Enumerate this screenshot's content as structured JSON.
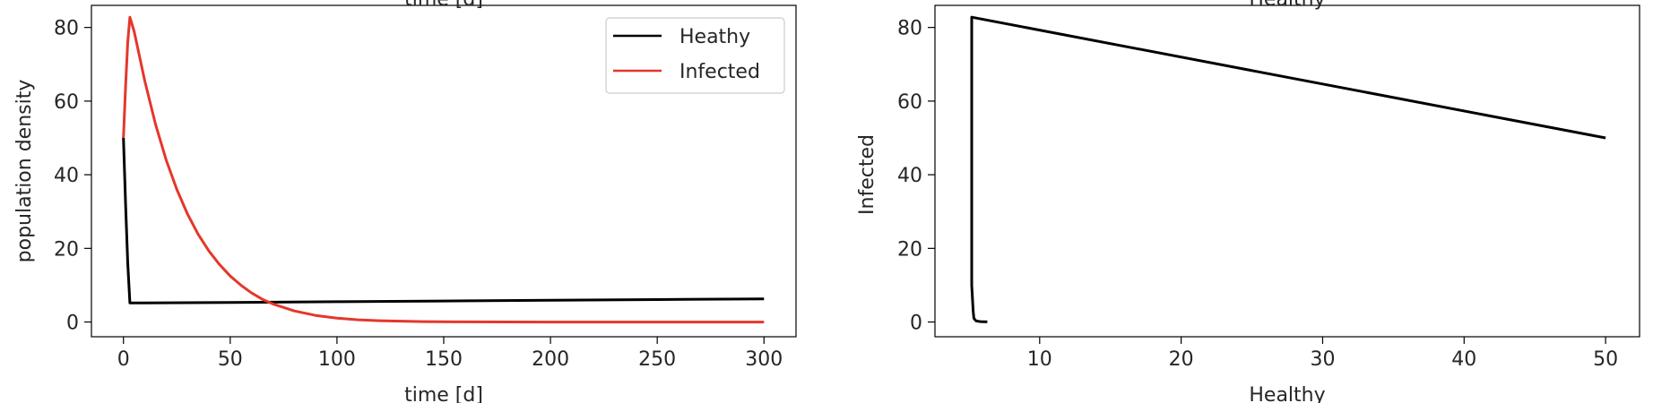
{
  "chart_data": [
    {
      "type": "line",
      "xlabel": "time [d]",
      "ylabel": "population density",
      "top_cut_label": "time [d]",
      "xlim": [
        -15,
        315
      ],
      "ylim": [
        -4,
        86
      ],
      "xticks": [
        0,
        50,
        100,
        150,
        200,
        250,
        300
      ],
      "yticks": [
        0,
        20,
        40,
        60,
        80
      ],
      "legend_position": "upper right",
      "grid": false,
      "series": [
        {
          "name": "Heathy",
          "color": "#000000",
          "points": [
            [
              0,
              50
            ],
            [
              1,
              32
            ],
            [
              2,
              16
            ],
            [
              3,
              5.2
            ],
            [
              10,
              5.2
            ],
            [
              50,
              5.3
            ],
            [
              100,
              5.5
            ],
            [
              150,
              5.7
            ],
            [
              200,
              5.9
            ],
            [
              250,
              6.1
            ],
            [
              300,
              6.3
            ]
          ]
        },
        {
          "name": "Infected",
          "color": "#e4372b",
          "points": [
            [
              0,
              50
            ],
            [
              1,
              64
            ],
            [
              2,
              76
            ],
            [
              3,
              82.8
            ],
            [
              5,
              79
            ],
            [
              10,
              65.5
            ],
            [
              15,
              53.7
            ],
            [
              20,
              44
            ],
            [
              25,
              36
            ],
            [
              30,
              29.3
            ],
            [
              35,
              23.8
            ],
            [
              40,
              19.3
            ],
            [
              45,
              15.6
            ],
            [
              50,
              12.5
            ],
            [
              55,
              10
            ],
            [
              60,
              7.9
            ],
            [
              65,
              6.2
            ],
            [
              70,
              4.9
            ],
            [
              80,
              3.0
            ],
            [
              90,
              1.8
            ],
            [
              100,
              1.05
            ],
            [
              110,
              0.6
            ],
            [
              120,
              0.35
            ],
            [
              140,
              0.12
            ],
            [
              160,
              0.04
            ],
            [
              200,
              0.0
            ],
            [
              250,
              0.0
            ],
            [
              300,
              0.0
            ]
          ]
        }
      ]
    },
    {
      "type": "line",
      "xlabel": "Healthy",
      "ylabel": "Infected",
      "top_cut_label": "Healthy",
      "xlim": [
        2.6,
        52.4
      ],
      "ylim": [
        -4,
        86
      ],
      "xticks": [
        10,
        20,
        30,
        40,
        50
      ],
      "yticks": [
        0,
        20,
        40,
        60,
        80
      ],
      "grid": false,
      "series": [
        {
          "color": "#000000",
          "points": [
            [
              50,
              50
            ],
            [
              5.2,
              82.8
            ],
            [
              5.2,
              60
            ],
            [
              5.2,
              30
            ],
            [
              5.2,
              10
            ],
            [
              5.3,
              3
            ],
            [
              5.35,
              1
            ],
            [
              5.5,
              0.3
            ],
            [
              5.8,
              0.1
            ],
            [
              6.3,
              0.05
            ]
          ]
        }
      ]
    }
  ]
}
